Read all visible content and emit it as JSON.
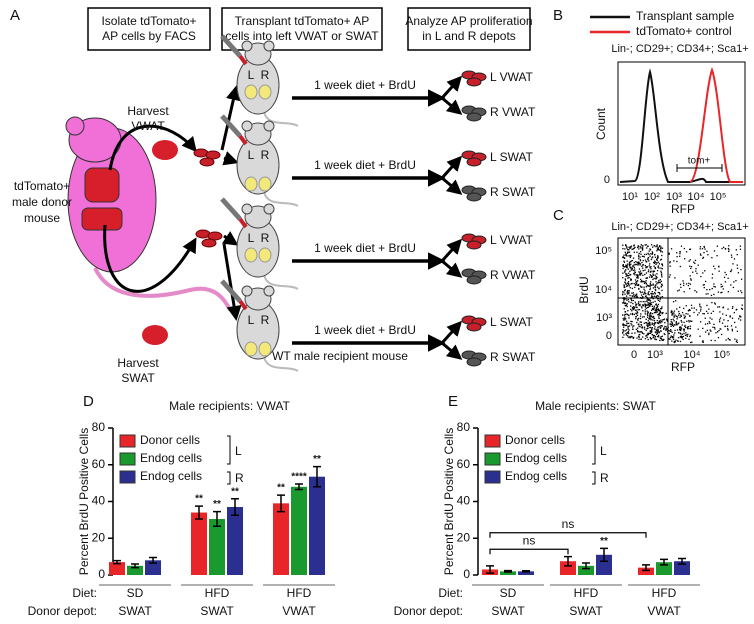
{
  "panel_a": {
    "label": "A",
    "steps": [
      [
        "Isolate tdTomato+",
        "AP cells by FACS"
      ],
      [
        "Transplant tdTomato+  AP",
        "cells into left VWAT or SWAT"
      ],
      [
        "Analyze AP proliferation",
        "in L and R depots"
      ]
    ],
    "harvest": [
      [
        "Harvest",
        "VWAT"
      ],
      [
        "Harvest",
        "SWAT"
      ]
    ],
    "donor": [
      "tdTomato+",
      "male donor",
      "mouse"
    ],
    "treatment": [
      "1 week diet + BrdU",
      "1 week diet + BrdU",
      "1 week diet + BrdU",
      "1 week diet + BrdU"
    ],
    "depot_sides": [
      "L",
      "R"
    ],
    "outputs": [
      [
        "L VWAT",
        "R VWAT"
      ],
      [
        "L SWAT",
        "R SWAT"
      ],
      [
        "L VWAT",
        "R VWAT"
      ],
      [
        "L SWAT",
        "R SWAT"
      ]
    ],
    "recipient": "WT male recipient mouse"
  },
  "panel_b": {
    "label": "B",
    "legend": [
      {
        "name": "Transplant sample",
        "color": "#111111"
      },
      {
        "name": "tdTomato+ control",
        "color": "#e8262a"
      }
    ],
    "gate": "Lin-; CD29+; CD34+; Sca1+",
    "ylabel": "Count",
    "xlabel": "RFP",
    "yticks": [
      "0"
    ],
    "xticks": [
      "10¹",
      "10²",
      "10³",
      "10⁴",
      "10⁵"
    ],
    "positive_gate": "tom+"
  },
  "panel_c": {
    "label": "C",
    "gate": "Lin-; CD29+; CD34+; Sca1+",
    "ylabel": "BrdU",
    "xlabel": "RFP",
    "yticks": [
      "10⁵",
      "10⁴",
      "10³",
      "0"
    ],
    "xticks": [
      "0",
      "10³",
      "10⁴",
      "10⁵"
    ]
  },
  "chart_data": [
    {
      "type": "bar",
      "panel_label": "D",
      "title": "Male recipients: VWAT",
      "ylabel": "Percent BrdU Positive Cells",
      "ylim": [
        0,
        80
      ],
      "yticks": [
        0,
        20,
        40,
        60,
        80
      ],
      "row_labels": [
        "Diet:",
        "Donor depot:"
      ],
      "categories": [
        "SD",
        "HFD",
        "HFD"
      ],
      "category_depots": [
        "SWAT",
        "SWAT",
        "VWAT"
      ],
      "legend_brackets": [
        "L",
        "R"
      ],
      "series": [
        {
          "name": "Donor cells",
          "color": "#e8262a",
          "values": [
            7,
            34,
            39
          ],
          "errors": [
            0.8,
            3.5,
            4.5
          ],
          "significance": [
            null,
            "**",
            "**"
          ]
        },
        {
          "name": "Endog cells",
          "color": "#1a9a2e",
          "values": [
            5,
            30.5,
            48
          ],
          "errors": [
            1,
            4,
            1.5
          ],
          "significance": [
            null,
            "**",
            "****"
          ]
        },
        {
          "name": "Endog cells",
          "color": "#2b2f8f",
          "values": [
            8,
            37,
            53.5
          ],
          "errors": [
            1.5,
            4.5,
            5.5
          ],
          "significance": [
            null,
            "**",
            "**"
          ]
        }
      ]
    },
    {
      "type": "bar",
      "panel_label": "E",
      "title": "Male recipients: SWAT",
      "ylabel": "Percent BrdU Positive Cells",
      "ylim": [
        0,
        80
      ],
      "yticks": [
        0,
        20,
        40,
        60,
        80
      ],
      "row_labels": [
        "Diet:",
        "Donor depot:"
      ],
      "categories": [
        "SD",
        "HFD",
        "HFD"
      ],
      "category_depots": [
        "SWAT",
        "SWAT",
        "VWAT"
      ],
      "legend_brackets": [
        "L",
        "R"
      ],
      "series": [
        {
          "name": "Donor cells",
          "color": "#e8262a",
          "values": [
            3,
            7.5,
            4
          ],
          "errors": [
            2,
            2.5,
            1.5
          ],
          "significance": [
            null,
            null,
            null
          ]
        },
        {
          "name": "Endog cells",
          "color": "#1a9a2e",
          "values": [
            2,
            5,
            7
          ],
          "errors": [
            0.4,
            1.5,
            1.5
          ],
          "significance": [
            null,
            null,
            null
          ]
        },
        {
          "name": "Endog cells",
          "color": "#2b2f8f",
          "values": [
            2,
            11,
            7.5
          ],
          "errors": [
            0.3,
            3.5,
            1.5
          ],
          "significance": [
            null,
            "**",
            null
          ]
        }
      ],
      "comparisons": [
        {
          "label": "ns",
          "groups": [
            0,
            1
          ],
          "y": 14
        },
        {
          "label": "ns",
          "groups": [
            0,
            2
          ],
          "y": 23
        }
      ]
    }
  ]
}
